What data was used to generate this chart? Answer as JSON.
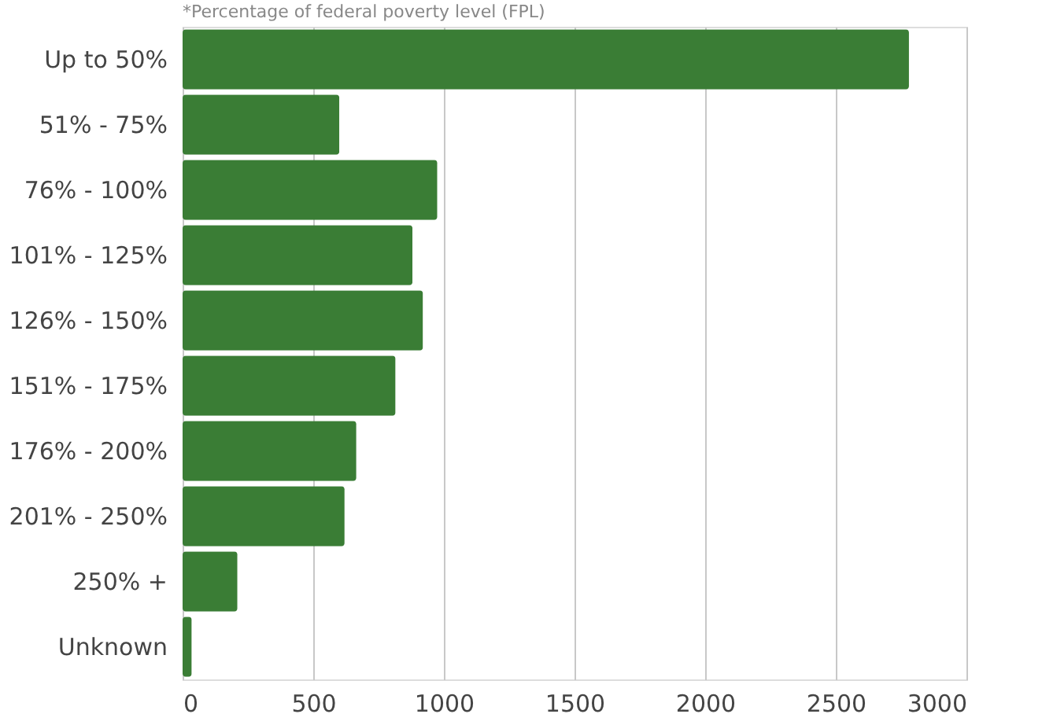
{
  "chart_data": {
    "type": "bar",
    "orientation": "horizontal",
    "categories": [
      "Up to 50%",
      "51% - 75%",
      "76% - 100%",
      "101% - 125%",
      "126% - 150%",
      "151% - 175%",
      "176% - 200%",
      "201% - 250%",
      "250% +",
      "Unknown"
    ],
    "values": [
      2780,
      600,
      975,
      880,
      920,
      815,
      665,
      620,
      210,
      35
    ],
    "color": "#3a7d35",
    "xlim": [
      0,
      3000
    ],
    "xticks": [
      0,
      500,
      1000,
      1500,
      2000,
      2500,
      3000
    ],
    "grid": "x",
    "annotations": [
      "*Percentage of federal poverty level (FPL)"
    ]
  }
}
